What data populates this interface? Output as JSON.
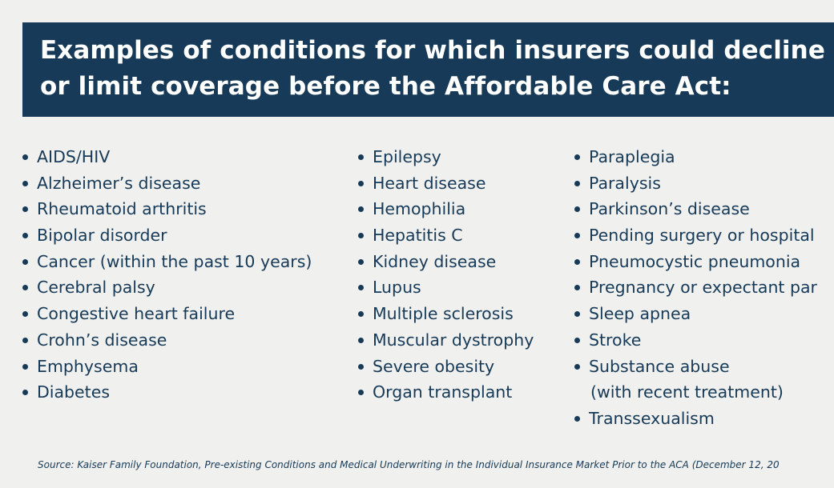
{
  "banner": {
    "line1": "Examples of conditions for which insurers could decline",
    "line2": "or limit coverage before the Affordable Care Act:"
  },
  "columns": [
    {
      "items": [
        {
          "text": "AIDS/HIV"
        },
        {
          "text": "Alzheimer’s disease"
        },
        {
          "text": "Rheumatoid arthritis"
        },
        {
          "text": "Bipolar disorder"
        },
        {
          "text": "Cancer (within the past 10 years)"
        },
        {
          "text": "Cerebral palsy"
        },
        {
          "text": "Congestive heart failure"
        },
        {
          "text": "Crohn’s disease"
        },
        {
          "text": "Emphysema"
        },
        {
          "text": "Diabetes"
        }
      ]
    },
    {
      "items": [
        {
          "text": "Epilepsy"
        },
        {
          "text": "Heart disease"
        },
        {
          "text": "Hemophilia"
        },
        {
          "text": "Hepatitis C"
        },
        {
          "text": "Kidney disease"
        },
        {
          "text": "Lupus"
        },
        {
          "text": "Multiple sclerosis"
        },
        {
          "text": "Muscular dystrophy"
        },
        {
          "text": "Severe obesity"
        },
        {
          "text": "Organ transplant"
        }
      ]
    },
    {
      "items": [
        {
          "text": "Paraplegia"
        },
        {
          "text": "Paralysis"
        },
        {
          "text": "Parkinson’s disease"
        },
        {
          "text": "Pending surgery or hospital"
        },
        {
          "text": "Pneumocystic pneumonia"
        },
        {
          "text": "Pregnancy or expectant par"
        },
        {
          "text": "Sleep apnea"
        },
        {
          "text": "Stroke"
        },
        {
          "text": "Substance abuse"
        },
        {
          "text": "(with recent treatment)"
        },
        {
          "text": "Transsexualism"
        }
      ]
    }
  ],
  "source": "Source:  Kaiser Family Foundation, Pre-existing Conditions and Medical Underwriting in the Individual Insurance Market Prior to the ACA (December 12, 20",
  "colors": {
    "navy": "#163a57",
    "background": "#f0f0ee",
    "banner_text": "#ffffff"
  }
}
